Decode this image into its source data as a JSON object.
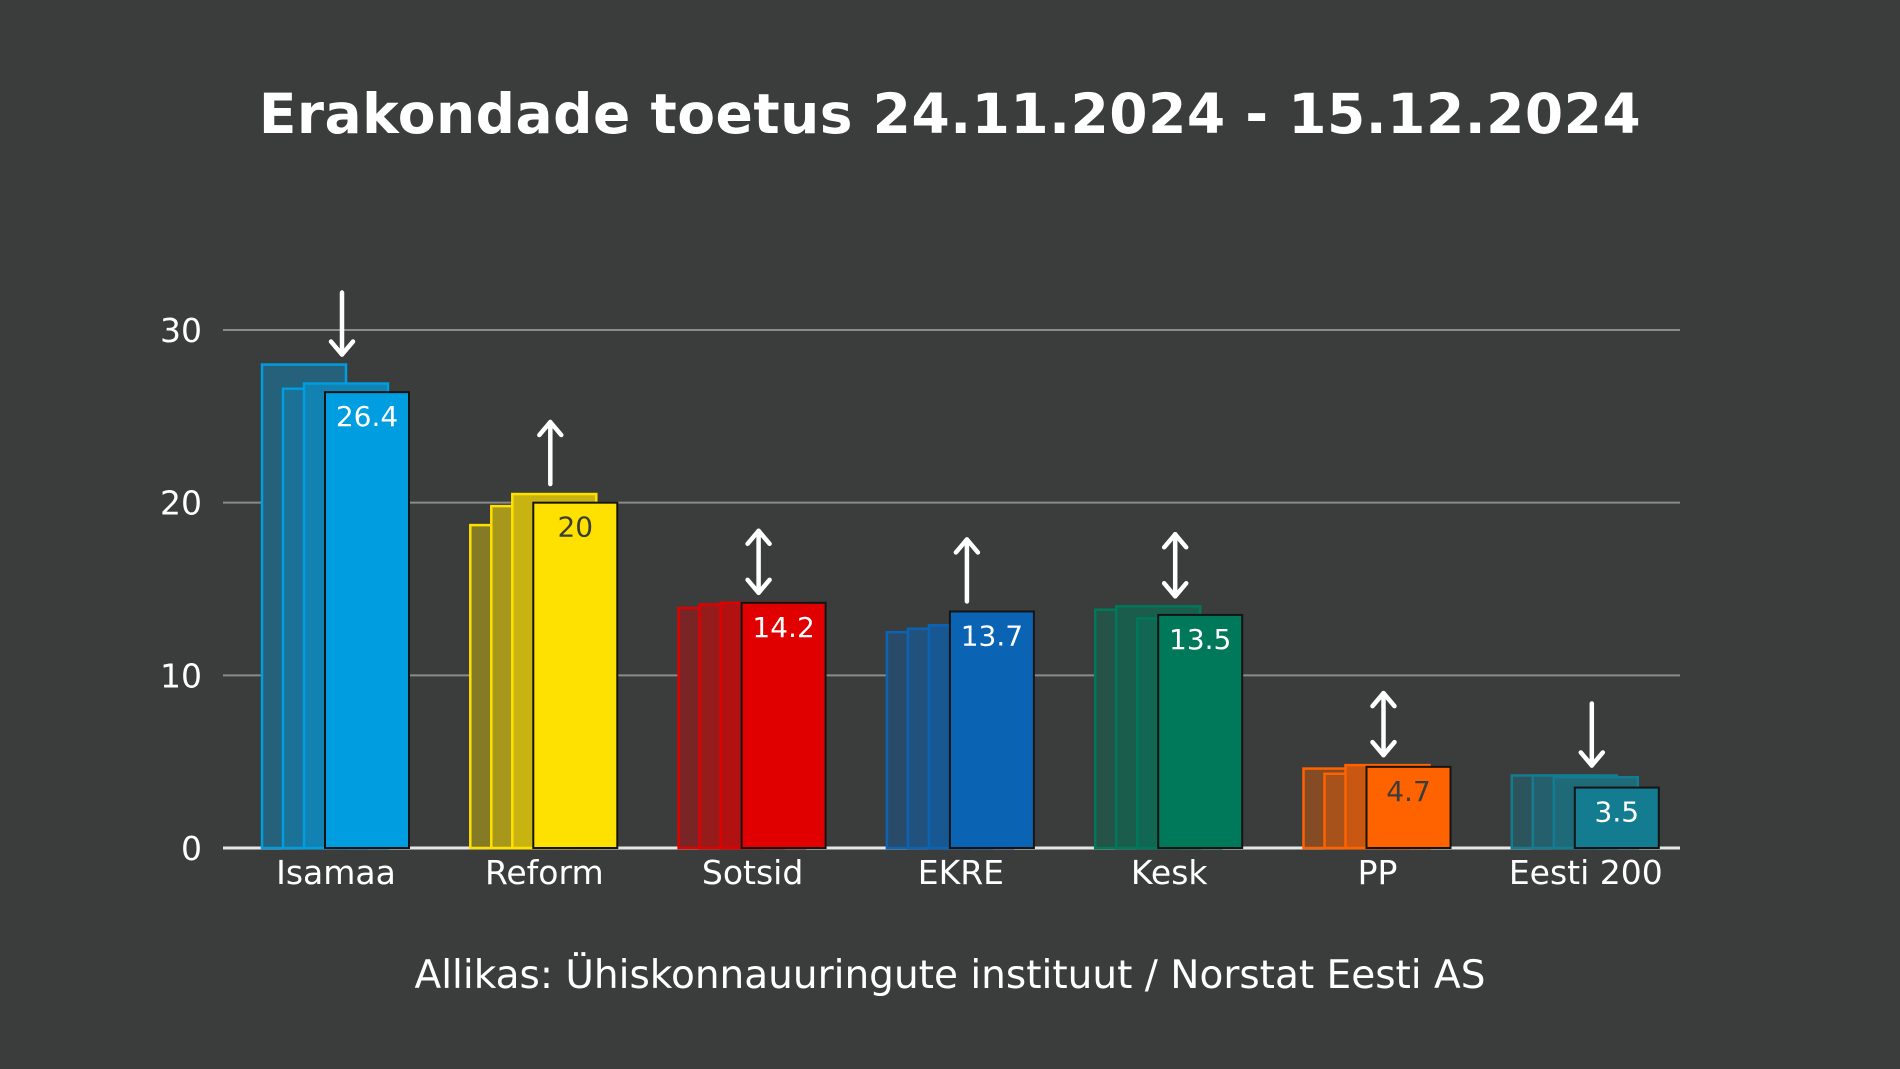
{
  "title": "Erakondade toetus 24.11.2024 - 15.12.2024",
  "source": "Allikas: Ühiskonnauuringute instituut / Norstat Eesti AS",
  "chart_data": {
    "type": "bar",
    "title": "Erakondade toetus 24.11.2024 - 15.12.2024",
    "xlabel": "",
    "ylabel": "",
    "ylim": [
      0,
      30
    ],
    "yticks": [
      "0",
      "10",
      "20",
      "30"
    ],
    "grid": true,
    "legend": "none",
    "categories": [
      "Isamaa",
      "Reform",
      "Sotsid",
      "EKRE",
      "Kesk",
      "PP",
      "Eesti 200"
    ],
    "series": [
      {
        "values": [
          28.0,
          18.7,
          13.9,
          12.5,
          13.8,
          4.6,
          4.2
        ]
      },
      {
        "values": [
          26.6,
          19.8,
          14.1,
          12.7,
          14.0,
          4.3,
          4.2
        ]
      },
      {
        "values": [
          26.9,
          20.5,
          14.2,
          12.9,
          13.3,
          4.8,
          4.1
        ]
      },
      {
        "values": [
          26.4,
          20.0,
          14.2,
          13.7,
          13.5,
          4.7,
          3.5
        ]
      }
    ],
    "data_labels": [
      "26.4",
      "20",
      "14.2",
      "13.7",
      "13.5",
      "4.7",
      "3.5"
    ],
    "trend_arrows": [
      "down",
      "up",
      "both",
      "up",
      "both",
      "both",
      "down"
    ],
    "colors": [
      "#009de0",
      "#ffe100",
      "#e00000",
      "#0b63b3",
      "#00785a",
      "#ff6300",
      "#137c91"
    ],
    "label_colors": [
      "#ffffff",
      "#3b3c3c",
      "#ffffff",
      "#ffffff",
      "#ffffff",
      "#3b3c3c",
      "#ffffff"
    ]
  }
}
